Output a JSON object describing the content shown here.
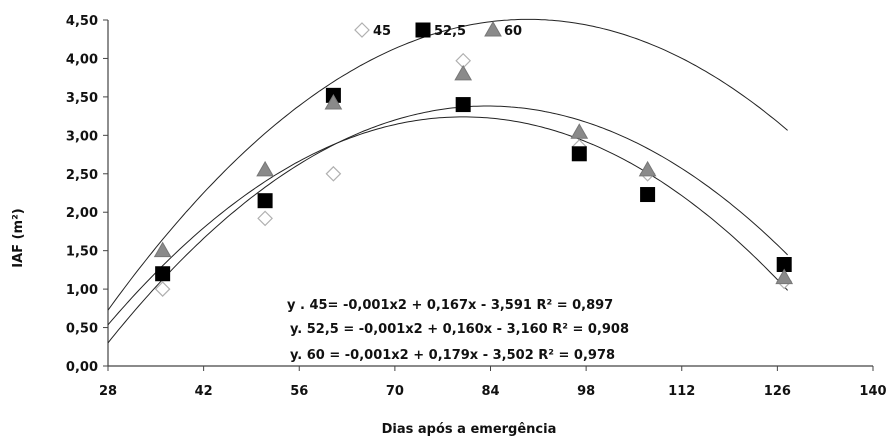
{
  "chart_data": {
    "type": "scatter",
    "xlabel": "Dias após a emergência",
    "ylabel": "IAF (m²)",
    "xlim": [
      28,
      140
    ],
    "ylim": [
      0,
      4.5
    ],
    "xticks": [
      28,
      42,
      56,
      70,
      84,
      98,
      112,
      126,
      140
    ],
    "yticks": [
      0,
      0.5,
      1.0,
      1.5,
      2.0,
      2.5,
      3.0,
      3.5,
      4.0,
      4.5
    ],
    "xtick_labels": [
      "28",
      "42",
      "56",
      "70",
      "84",
      "98",
      "112",
      "126",
      "140"
    ],
    "ytick_labels": [
      "0,00",
      "0,50",
      "1,00",
      "1,50",
      "2,00",
      "2,50",
      "3,00",
      "3,50",
      "4,00",
      "4,50"
    ],
    "grid": false,
    "legend": "top",
    "series": [
      {
        "name": "45",
        "marker": "diamond",
        "color": "#d0d0d0",
        "x": [
          36,
          51,
          61,
          80,
          97,
          107,
          127
        ],
        "y": [
          1.0,
          1.92,
          2.5,
          3.97,
          2.85,
          2.5,
          1.1
        ],
        "fit": {
          "a": -0.001,
          "b": 0.167,
          "c": -3.591
        },
        "equation": "y . 45= -0,001x2 + 0,167x - 3,591 R² = 0,897"
      },
      {
        "name": "52,5",
        "marker": "square",
        "color": "#000000",
        "x": [
          36,
          51,
          61,
          80,
          97,
          107,
          127
        ],
        "y": [
          1.2,
          2.15,
          3.52,
          3.4,
          2.76,
          2.23,
          1.32
        ],
        "fit": {
          "a": -0.001,
          "b": 0.16,
          "c": -3.16
        },
        "equation": "y. 52,5 = -0,001x2 + 0,160x - 3,160 R² = 0,908"
      },
      {
        "name": "60",
        "marker": "triangle",
        "color": "#8a8a8a",
        "x": [
          36,
          51,
          61,
          80,
          97,
          107,
          127
        ],
        "y": [
          1.5,
          2.55,
          3.42,
          3.8,
          3.04,
          2.55,
          1.15
        ],
        "fit": {
          "a": -0.001,
          "b": 0.179,
          "c": -3.502
        },
        "equation": "y. 60 = -0,001x2 + 0,179x - 3,502 R² = 0,978"
      }
    ]
  }
}
